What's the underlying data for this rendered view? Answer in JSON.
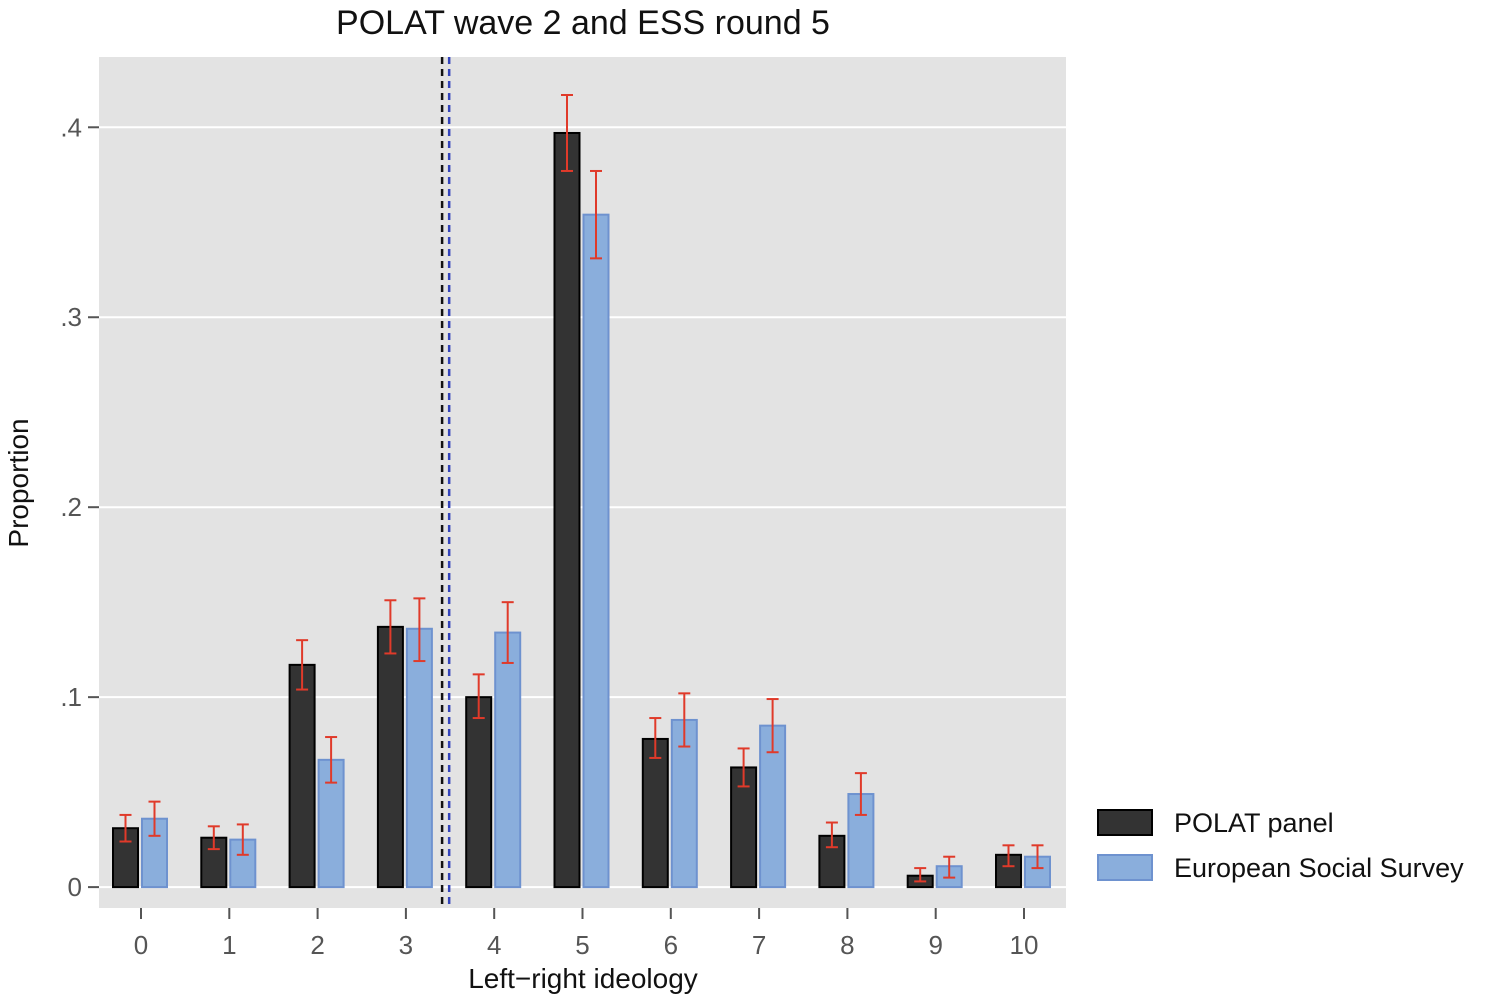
{
  "chart_data": {
    "type": "bar",
    "title": "POLAT wave 2 and ESS round 5",
    "xlabel": "Left−right ideology",
    "ylabel": "Proportion",
    "categories": [
      "0",
      "1",
      "2",
      "3",
      "4",
      "5",
      "6",
      "7",
      "8",
      "9",
      "10"
    ],
    "ylim": [
      -0.011,
      0.437
    ],
    "yticks": [
      0,
      0.1,
      0.2,
      0.3,
      0.4
    ],
    "ytick_labels": [
      "0",
      ".1",
      ".2",
      ".3",
      ".4"
    ],
    "grid": true,
    "legend_position": "right",
    "series": [
      {
        "name": "POLAT panel",
        "color": "#333333",
        "values": [
          0.031,
          0.026,
          0.117,
          0.137,
          0.1,
          0.397,
          0.078,
          0.063,
          0.027,
          0.006,
          0.017
        ],
        "ci_low": [
          0.024,
          0.02,
          0.104,
          0.123,
          0.089,
          0.377,
          0.068,
          0.053,
          0.021,
          0.003,
          0.011
        ],
        "ci_high": [
          0.038,
          0.032,
          0.13,
          0.151,
          0.112,
          0.417,
          0.089,
          0.073,
          0.034,
          0.01,
          0.022
        ]
      },
      {
        "name": "European Social Survey",
        "color": "#8aaedc",
        "values": [
          0.036,
          0.025,
          0.067,
          0.136,
          0.134,
          0.354,
          0.088,
          0.085,
          0.049,
          0.011,
          0.016
        ],
        "ci_low": [
          0.027,
          0.017,
          0.055,
          0.119,
          0.118,
          0.331,
          0.074,
          0.071,
          0.038,
          0.005,
          0.01
        ],
        "ci_high": [
          0.045,
          0.033,
          0.079,
          0.152,
          0.15,
          0.377,
          0.102,
          0.099,
          0.06,
          0.016,
          0.022
        ]
      }
    ],
    "error_bar_color": "#e03a2a",
    "reference_lines": [
      {
        "name": "POLAT mean",
        "x": 3.41,
        "color": "#111111",
        "style": "dashed"
      },
      {
        "name": "ESS mean",
        "x": 3.49,
        "color": "#3344bb",
        "style": "dashed"
      }
    ],
    "plot_background": "#e3e3e3"
  }
}
